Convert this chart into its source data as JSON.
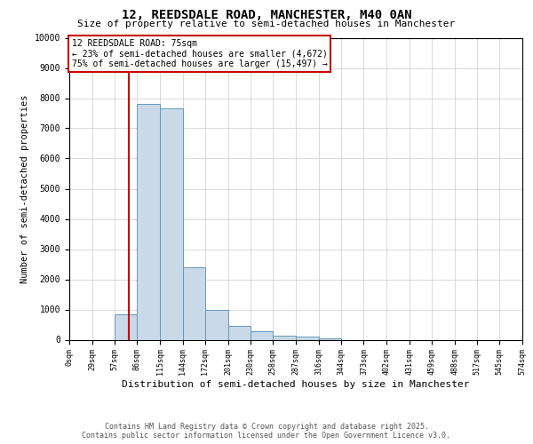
{
  "title": "12, REEDSDALE ROAD, MANCHESTER, M40 0AN",
  "subtitle": "Size of property relative to semi-detached houses in Manchester",
  "xlabel": "Distribution of semi-detached houses by size in Manchester",
  "ylabel": "Number of semi-detached properties",
  "bin_labels": [
    "0sqm",
    "29sqm",
    "57sqm",
    "86sqm",
    "115sqm",
    "144sqm",
    "172sqm",
    "201sqm",
    "230sqm",
    "258sqm",
    "287sqm",
    "316sqm",
    "344sqm",
    "373sqm",
    "402sqm",
    "431sqm",
    "459sqm",
    "488sqm",
    "517sqm",
    "545sqm",
    "574sqm"
  ],
  "bin_edges": [
    0,
    29,
    57,
    86,
    115,
    144,
    172,
    201,
    230,
    258,
    287,
    316,
    344,
    373,
    402,
    431,
    459,
    488,
    517,
    545,
    574
  ],
  "bar_heights": [
    0,
    0,
    850,
    7800,
    7650,
    2400,
    1000,
    450,
    280,
    120,
    100,
    50,
    0,
    0,
    0,
    0,
    0,
    0,
    0,
    0
  ],
  "bar_color": "#c9d9e8",
  "bar_edge_color": "#6699bb",
  "grid_color": "#cccccc",
  "property_size": 75,
  "red_line_color": "#cc0000",
  "annotation_line1": "12 REEDSDALE ROAD: 75sqm",
  "annotation_line2": "← 23% of semi-detached houses are smaller (4,672)",
  "annotation_line3": "75% of semi-detached houses are larger (15,497) →",
  "annotation_box_color": "#cc0000",
  "ylim": [
    0,
    10000
  ],
  "yticks": [
    0,
    1000,
    2000,
    3000,
    4000,
    5000,
    6000,
    7000,
    8000,
    9000,
    10000
  ],
  "footer_line1": "Contains HM Land Registry data © Crown copyright and database right 2025.",
  "footer_line2": "Contains public sector information licensed under the Open Government Licence v3.0.",
  "background_color": "#ffffff",
  "font_family": "DejaVu Sans Mono"
}
